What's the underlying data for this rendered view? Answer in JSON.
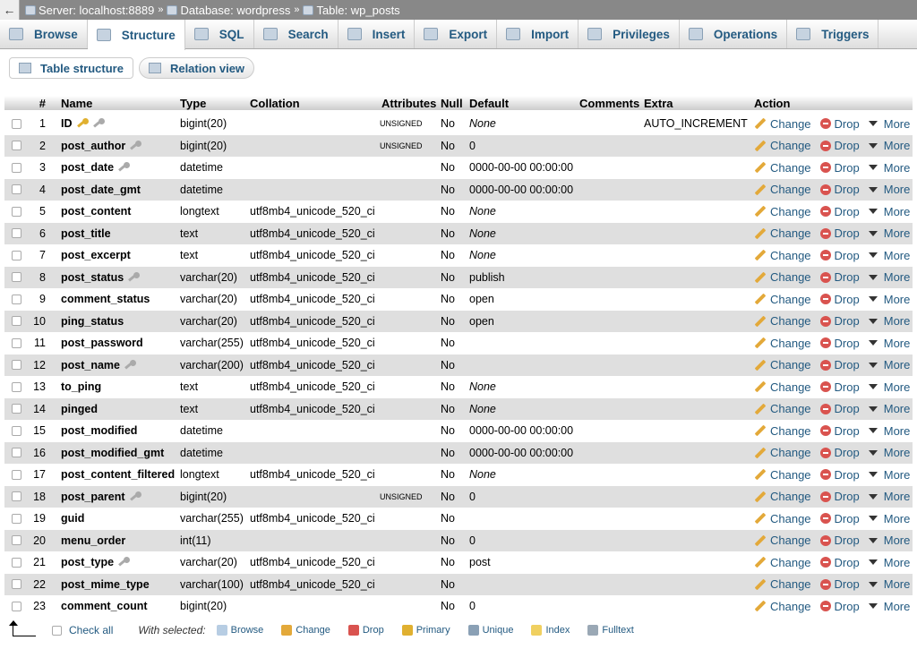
{
  "breadcrumb": {
    "back": "←",
    "server": "Server: localhost:8889",
    "database": "Database: wordpress",
    "table": "Table: wp_posts",
    "separator": "»"
  },
  "tabs": [
    {
      "label": "Browse"
    },
    {
      "label": "Structure",
      "active": true
    },
    {
      "label": "SQL"
    },
    {
      "label": "Search"
    },
    {
      "label": "Insert"
    },
    {
      "label": "Export"
    },
    {
      "label": "Import"
    },
    {
      "label": "Privileges"
    },
    {
      "label": "Operations"
    },
    {
      "label": "Triggers"
    }
  ],
  "subtabs": {
    "table_structure": "Table structure",
    "relation_view": "Relation view"
  },
  "columns": {
    "num": "#",
    "name": "Name",
    "type": "Type",
    "collation": "Collation",
    "attributes": "Attributes",
    "null": "Null",
    "default": "Default",
    "comments": "Comments",
    "extra": "Extra",
    "action": "Action"
  },
  "actions": {
    "change": "Change",
    "drop": "Drop",
    "more": "More"
  },
  "rows": [
    {
      "n": "1",
      "name": "ID",
      "keys": [
        "primary",
        "index"
      ],
      "type": "bigint(20)",
      "collation": "",
      "attr": "UNSIGNED",
      "null": "No",
      "default": "None",
      "default_italic": true,
      "extra": "AUTO_INCREMENT"
    },
    {
      "n": "2",
      "name": "post_author",
      "keys": [
        "index"
      ],
      "type": "bigint(20)",
      "collation": "",
      "attr": "UNSIGNED",
      "null": "No",
      "default": "0",
      "extra": ""
    },
    {
      "n": "3",
      "name": "post_date",
      "keys": [
        "index"
      ],
      "type": "datetime",
      "collation": "",
      "attr": "",
      "null": "No",
      "default": "0000-00-00 00:00:00",
      "extra": ""
    },
    {
      "n": "4",
      "name": "post_date_gmt",
      "keys": [],
      "type": "datetime",
      "collation": "",
      "attr": "",
      "null": "No",
      "default": "0000-00-00 00:00:00",
      "extra": ""
    },
    {
      "n": "5",
      "name": "post_content",
      "keys": [],
      "type": "longtext",
      "collation": "utf8mb4_unicode_520_ci",
      "attr": "",
      "null": "No",
      "default": "None",
      "default_italic": true,
      "extra": ""
    },
    {
      "n": "6",
      "name": "post_title",
      "keys": [],
      "type": "text",
      "collation": "utf8mb4_unicode_520_ci",
      "attr": "",
      "null": "No",
      "default": "None",
      "default_italic": true,
      "extra": ""
    },
    {
      "n": "7",
      "name": "post_excerpt",
      "keys": [],
      "type": "text",
      "collation": "utf8mb4_unicode_520_ci",
      "attr": "",
      "null": "No",
      "default": "None",
      "default_italic": true,
      "extra": ""
    },
    {
      "n": "8",
      "name": "post_status",
      "keys": [
        "index"
      ],
      "type": "varchar(20)",
      "collation": "utf8mb4_unicode_520_ci",
      "attr": "",
      "null": "No",
      "default": "publish",
      "extra": ""
    },
    {
      "n": "9",
      "name": "comment_status",
      "keys": [],
      "type": "varchar(20)",
      "collation": "utf8mb4_unicode_520_ci",
      "attr": "",
      "null": "No",
      "default": "open",
      "extra": ""
    },
    {
      "n": "10",
      "name": "ping_status",
      "keys": [],
      "type": "varchar(20)",
      "collation": "utf8mb4_unicode_520_ci",
      "attr": "",
      "null": "No",
      "default": "open",
      "extra": ""
    },
    {
      "n": "11",
      "name": "post_password",
      "keys": [],
      "type": "varchar(255)",
      "collation": "utf8mb4_unicode_520_ci",
      "attr": "",
      "null": "No",
      "default": "",
      "extra": ""
    },
    {
      "n": "12",
      "name": "post_name",
      "keys": [
        "index"
      ],
      "type": "varchar(200)",
      "collation": "utf8mb4_unicode_520_ci",
      "attr": "",
      "null": "No",
      "default": "",
      "extra": ""
    },
    {
      "n": "13",
      "name": "to_ping",
      "keys": [],
      "type": "text",
      "collation": "utf8mb4_unicode_520_ci",
      "attr": "",
      "null": "No",
      "default": "None",
      "default_italic": true,
      "extra": ""
    },
    {
      "n": "14",
      "name": "pinged",
      "keys": [],
      "type": "text",
      "collation": "utf8mb4_unicode_520_ci",
      "attr": "",
      "null": "No",
      "default": "None",
      "default_italic": true,
      "extra": ""
    },
    {
      "n": "15",
      "name": "post_modified",
      "keys": [],
      "type": "datetime",
      "collation": "",
      "attr": "",
      "null": "No",
      "default": "0000-00-00 00:00:00",
      "extra": ""
    },
    {
      "n": "16",
      "name": "post_modified_gmt",
      "keys": [],
      "type": "datetime",
      "collation": "",
      "attr": "",
      "null": "No",
      "default": "0000-00-00 00:00:00",
      "extra": ""
    },
    {
      "n": "17",
      "name": "post_content_filtered",
      "keys": [],
      "type": "longtext",
      "collation": "utf8mb4_unicode_520_ci",
      "attr": "",
      "null": "No",
      "default": "None",
      "default_italic": true,
      "extra": ""
    },
    {
      "n": "18",
      "name": "post_parent",
      "keys": [
        "index"
      ],
      "type": "bigint(20)",
      "collation": "",
      "attr": "UNSIGNED",
      "null": "No",
      "default": "0",
      "extra": ""
    },
    {
      "n": "19",
      "name": "guid",
      "keys": [],
      "type": "varchar(255)",
      "collation": "utf8mb4_unicode_520_ci",
      "attr": "",
      "null": "No",
      "default": "",
      "extra": ""
    },
    {
      "n": "20",
      "name": "menu_order",
      "keys": [],
      "type": "int(11)",
      "collation": "",
      "attr": "",
      "null": "No",
      "default": "0",
      "extra": ""
    },
    {
      "n": "21",
      "name": "post_type",
      "keys": [
        "index"
      ],
      "type": "varchar(20)",
      "collation": "utf8mb4_unicode_520_ci",
      "attr": "",
      "null": "No",
      "default": "post",
      "extra": ""
    },
    {
      "n": "22",
      "name": "post_mime_type",
      "keys": [],
      "type": "varchar(100)",
      "collation": "utf8mb4_unicode_520_ci",
      "attr": "",
      "null": "No",
      "default": "",
      "extra": ""
    },
    {
      "n": "23",
      "name": "comment_count",
      "keys": [],
      "type": "bigint(20)",
      "collation": "",
      "attr": "",
      "null": "No",
      "default": "0",
      "extra": ""
    }
  ],
  "footer": {
    "check_all": "Check all",
    "with_selected": "With selected:",
    "actions": [
      {
        "label": "Browse",
        "color": "#b7cde3"
      },
      {
        "label": "Change",
        "color": "#e3a93a"
      },
      {
        "label": "Drop",
        "color": "#d9534f"
      },
      {
        "label": "Primary",
        "color": "#e0b030"
      },
      {
        "label": "Unique",
        "color": "#8aa0b5"
      },
      {
        "label": "Index",
        "color": "#f0d060"
      },
      {
        "label": "Fulltext",
        "color": "#9aa8b5"
      }
    ]
  }
}
